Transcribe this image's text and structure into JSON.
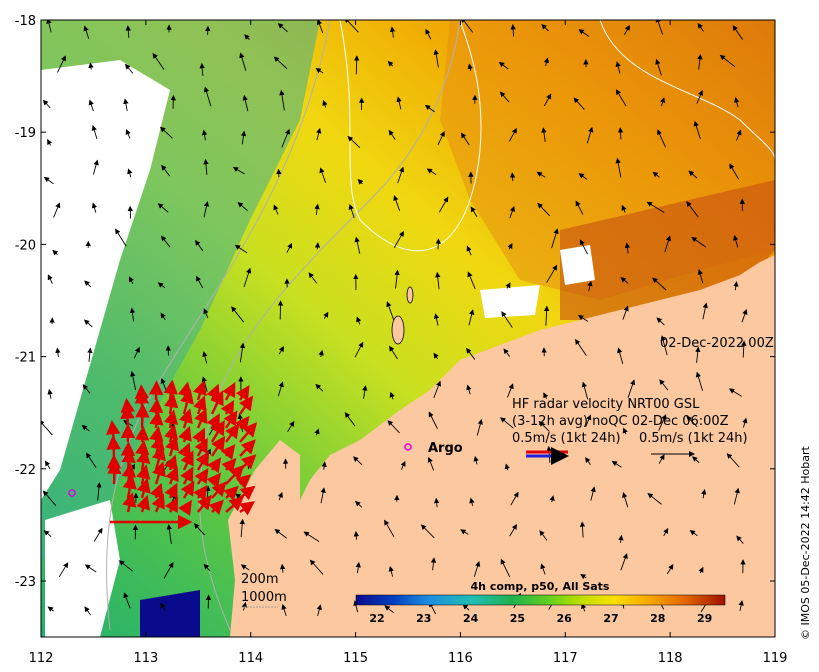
{
  "axes": {
    "x_ticks": [
      "112",
      "113",
      "114",
      "115",
      "116",
      "117",
      "118",
      "119"
    ],
    "y_ticks": [
      "-18",
      "-19",
      "-20",
      "-21",
      "-22",
      "-23"
    ]
  },
  "map": {
    "date_label": "02-Dec-2022 00Z",
    "argo_label": "Argo",
    "legend_line1": "HF radar velocity  NRT00 GSL",
    "legend_line2": "(3-12h avg) noQC 02-Dec 06:00Z",
    "legend_line3_left": "0.5m/s (1kt 24h)",
    "legend_line3_right": "0.5m/s (1kt 24h)",
    "depth_200": "200m",
    "depth_1000": "1000m",
    "credit": "© IMOS 05-Dec-2022 14:42 Hobart",
    "land_color": "#fcc8a0",
    "radar_color": "#e00000",
    "argo_color": "#e000e0"
  },
  "colorbar": {
    "title": "4h comp, p50, All Sats",
    "ticks": [
      "22",
      "23",
      "24",
      "25",
      "26",
      "27",
      "28",
      "29"
    ],
    "colors": [
      "#0a0a8c",
      "#0040c0",
      "#1e90e0",
      "#20c0b0",
      "#20b050",
      "#60d020",
      "#c8e000",
      "#f8e000",
      "#f8b000",
      "#e87000",
      "#c84000",
      "#a01000"
    ]
  }
}
